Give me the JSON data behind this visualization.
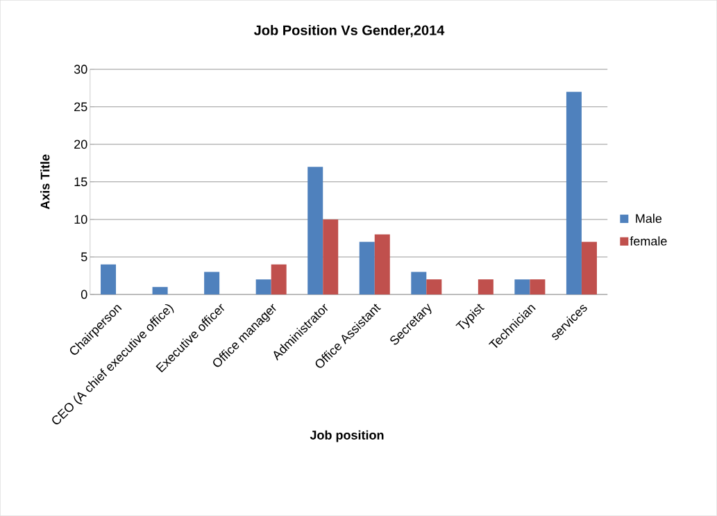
{
  "chart_data": {
    "type": "bar",
    "title": "Job Position Vs Gender,2014",
    "xlabel": "Job position",
    "ylabel": "Axis Title",
    "categories": [
      "Chairperson",
      "CEO (A chief executive office)",
      "Executive officer",
      "Office manager",
      "Administrator",
      "Office Assistant",
      "Secretary",
      "Typist",
      "Technician",
      "services"
    ],
    "series": [
      {
        "name": "Male",
        "color": "#4f81bd",
        "values": [
          4,
          1,
          3,
          2,
          17,
          7,
          3,
          0,
          2,
          27
        ]
      },
      {
        "name": "female",
        "color": "#c0504d",
        "values": [
          0,
          0,
          0,
          4,
          10,
          8,
          2,
          2,
          2,
          7
        ]
      }
    ],
    "ylim": [
      0,
      30
    ],
    "yticks": [
      0,
      5,
      10,
      15,
      20,
      25,
      30
    ],
    "grid": "y",
    "legend": "right"
  }
}
